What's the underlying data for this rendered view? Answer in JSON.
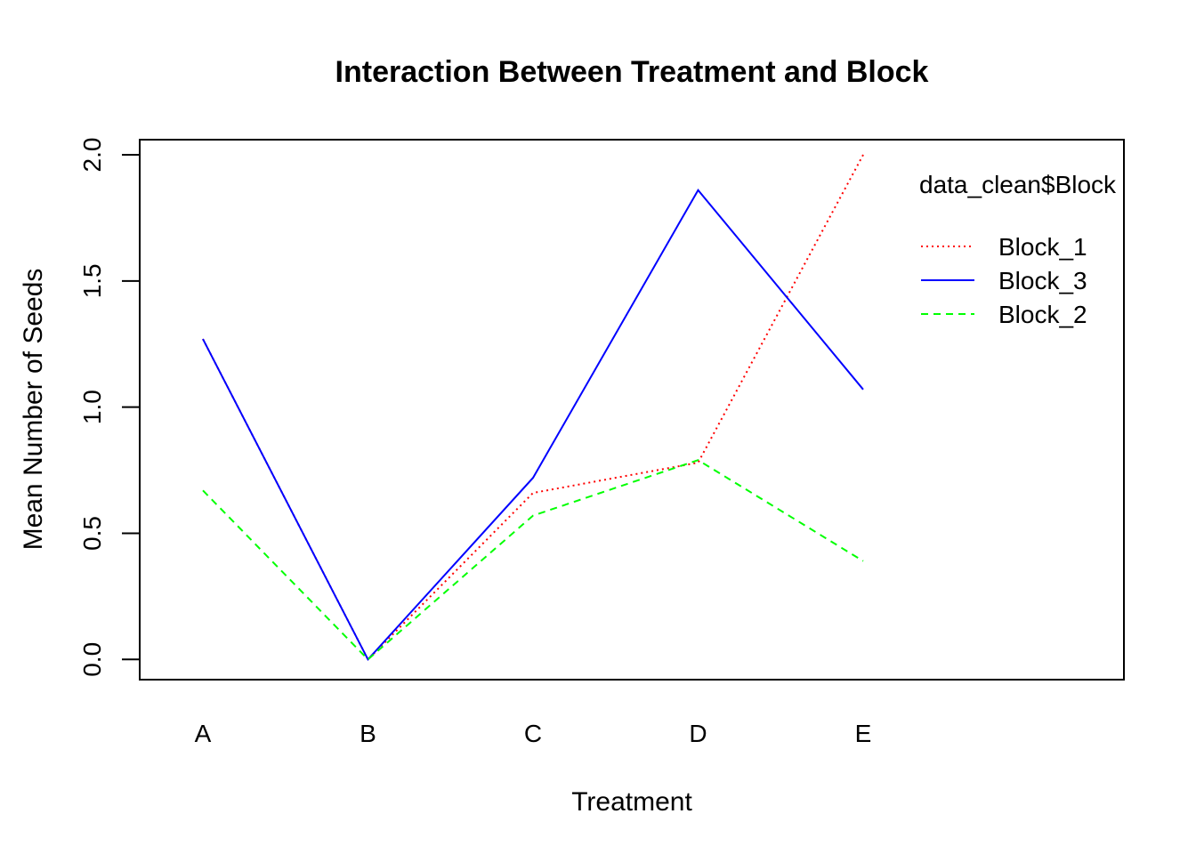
{
  "chart_data": {
    "type": "line",
    "title": "Interaction Between Treatment and Block",
    "xlabel": "Treatment",
    "ylabel": "Mean Number of Seeds",
    "categories": [
      "A",
      "B",
      "C",
      "D",
      "E"
    ],
    "yticks": [
      "0.0",
      "0.5",
      "1.0",
      "1.5",
      "2.0"
    ],
    "ylim": [
      -0.08,
      2.06
    ],
    "grid": false,
    "legend": {
      "title": "data_clean$Block",
      "position": "top-right"
    },
    "series": [
      {
        "name": "Block_1",
        "color": "#ff0000",
        "dash": "dotted",
        "values": [
          1.27,
          0.0,
          0.66,
          0.78,
          2.0
        ]
      },
      {
        "name": "Block_3",
        "color": "#0000ff",
        "dash": "solid",
        "values": [
          1.27,
          0.0,
          0.72,
          1.86,
          1.07
        ]
      },
      {
        "name": "Block_2",
        "color": "#00ff00",
        "dash": "dashed",
        "values": [
          0.67,
          0.0,
          0.57,
          0.79,
          0.39
        ]
      }
    ]
  }
}
